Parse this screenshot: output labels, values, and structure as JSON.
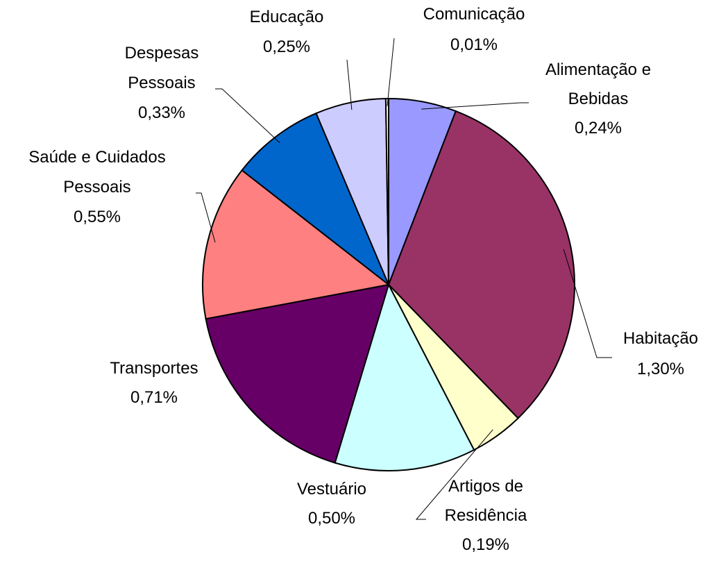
{
  "chart_data": {
    "type": "pie",
    "categories": [
      "Alimentação e\nBebidas",
      "Habitação",
      "Artigos de\nResidência",
      "Vestuário",
      "Transportes",
      "Saúde e Cuidados\nPessoais",
      "Despesas\nPessoais",
      "Educação",
      "Comunicação"
    ],
    "values": [
      0.24,
      1.3,
      0.19,
      0.5,
      0.71,
      0.55,
      0.33,
      0.25,
      0.01
    ],
    "value_labels": [
      "0,24%",
      "1,30%",
      "0,19%",
      "0,50%",
      "0,71%",
      "0,55%",
      "0,33%",
      "0,25%",
      "0,01%"
    ],
    "colors": [
      "#9999ff",
      "#993366",
      "#ffffcc",
      "#ccffff",
      "#660066",
      "#ff8080",
      "#0066cc",
      "#ccccff",
      "#ffffff"
    ]
  }
}
